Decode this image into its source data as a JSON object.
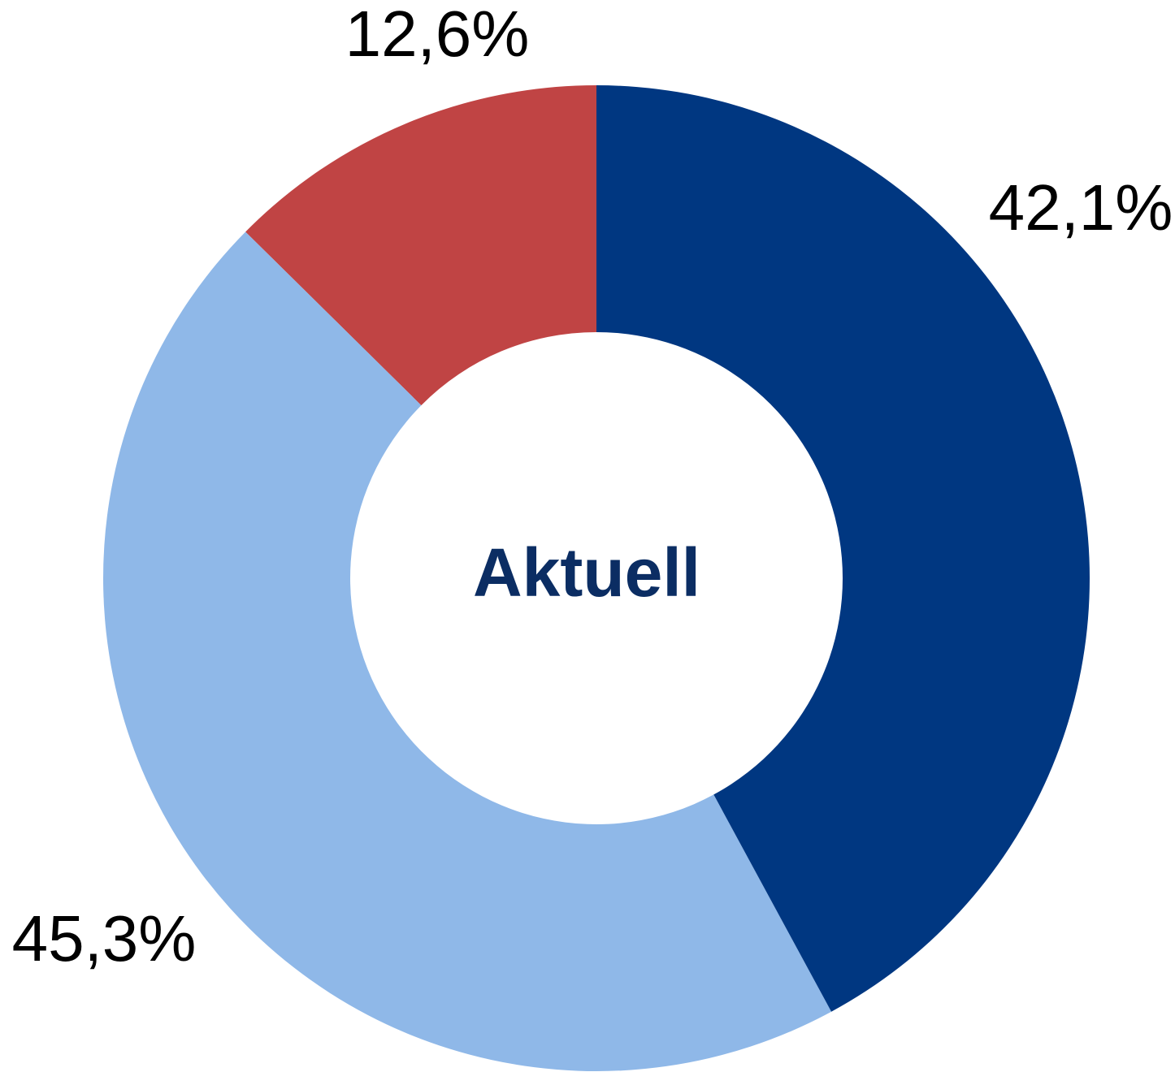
{
  "chart_data": {
    "type": "donut",
    "center_text": "Aktuell",
    "values": [
      42.1,
      45.3,
      12.6
    ],
    "value_labels": [
      "42,1%",
      "45,3%",
      "12,6%"
    ],
    "colors": [
      "#003781",
      "#8fb8e8",
      "#c04444"
    ]
  }
}
